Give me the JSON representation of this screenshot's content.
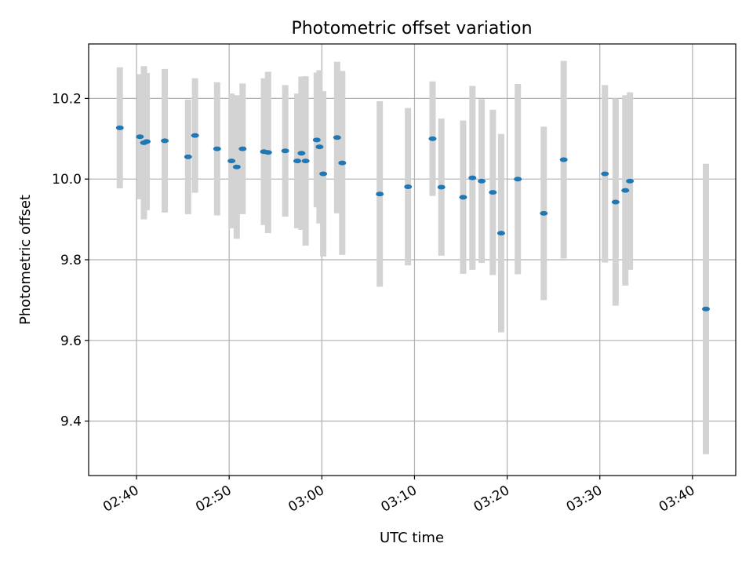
{
  "chart_data": {
    "type": "scatter",
    "title": "Photometric offset variation",
    "xlabel": "UTC time",
    "ylabel": "Photometric offset",
    "x_ticks": [
      "02:40",
      "02:50",
      "03:00",
      "03:10",
      "03:20",
      "03:30",
      "03:40"
    ],
    "y_ticks": [
      "9.4",
      "9.6",
      "9.8",
      "10.0",
      "10.2"
    ],
    "y_tick_values": [
      9.4,
      9.6,
      9.8,
      10.0,
      10.2
    ],
    "xlim": [
      "02:34:50",
      "03:44:40"
    ],
    "ylim": [
      9.265,
      10.335
    ],
    "grid": true,
    "colors": {
      "marker": "#1f77b4",
      "errorbar": "#d3d3d3",
      "grid": "#b0b0b0"
    },
    "points": [
      {
        "x": "02:38:12",
        "y": 10.127,
        "err": 0.15
      },
      {
        "x": "02:40:22",
        "y": 10.105,
        "err": 0.155
      },
      {
        "x": "02:40:48",
        "y": 10.09,
        "err": 0.19
      },
      {
        "x": "02:41:06",
        "y": 10.093,
        "err": 0.17
      },
      {
        "x": "02:43:03",
        "y": 10.095,
        "err": 0.178
      },
      {
        "x": "02:45:34",
        "y": 10.055,
        "err": 0.142
      },
      {
        "x": "02:46:19",
        "y": 10.108,
        "err": 0.142
      },
      {
        "x": "02:48:42",
        "y": 10.075,
        "err": 0.165
      },
      {
        "x": "02:50:15",
        "y": 10.045,
        "err": 0.167
      },
      {
        "x": "02:50:49",
        "y": 10.03,
        "err": 0.178
      },
      {
        "x": "02:51:27",
        "y": 10.075,
        "err": 0.162
      },
      {
        "x": "02:53:45",
        "y": 10.068,
        "err": 0.182
      },
      {
        "x": "02:54:12",
        "y": 10.066,
        "err": 0.2
      },
      {
        "x": "02:56:03",
        "y": 10.07,
        "err": 0.163
      },
      {
        "x": "02:57:21",
        "y": 10.045,
        "err": 0.167
      },
      {
        "x": "02:57:48",
        "y": 10.064,
        "err": 0.19
      },
      {
        "x": "02:58:15",
        "y": 10.045,
        "err": 0.21
      },
      {
        "x": "02:59:27",
        "y": 10.097,
        "err": 0.167
      },
      {
        "x": "02:59:45",
        "y": 10.08,
        "err": 0.19
      },
      {
        "x": "03:00:09",
        "y": 10.013,
        "err": 0.205
      },
      {
        "x": "03:01:39",
        "y": 10.103,
        "err": 0.188
      },
      {
        "x": "03:02:12",
        "y": 10.04,
        "err": 0.228
      },
      {
        "x": "03:06:15",
        "y": 9.963,
        "err": 0.23
      },
      {
        "x": "03:09:18",
        "y": 9.981,
        "err": 0.195
      },
      {
        "x": "03:11:57",
        "y": 10.1,
        "err": 0.142
      },
      {
        "x": "03:12:54",
        "y": 9.98,
        "err": 0.17
      },
      {
        "x": "03:15:15",
        "y": 9.955,
        "err": 0.19
      },
      {
        "x": "03:16:15",
        "y": 10.003,
        "err": 0.228
      },
      {
        "x": "03:17:15",
        "y": 9.995,
        "err": 0.203
      },
      {
        "x": "03:18:27",
        "y": 9.967,
        "err": 0.205
      },
      {
        "x": "03:19:21",
        "y": 9.866,
        "err": 0.246
      },
      {
        "x": "03:21:09",
        "y": 10.0,
        "err": 0.236
      },
      {
        "x": "03:23:57",
        "y": 9.915,
        "err": 0.215
      },
      {
        "x": "03:26:06",
        "y": 10.048,
        "err": 0.245
      },
      {
        "x": "03:30:33",
        "y": 10.013,
        "err": 0.22
      },
      {
        "x": "03:31:42",
        "y": 9.943,
        "err": 0.257
      },
      {
        "x": "03:32:45",
        "y": 9.972,
        "err": 0.236
      },
      {
        "x": "03:33:15",
        "y": 9.995,
        "err": 0.22
      },
      {
        "x": "03:41:27",
        "y": 9.678,
        "err": 0.36
      }
    ]
  }
}
